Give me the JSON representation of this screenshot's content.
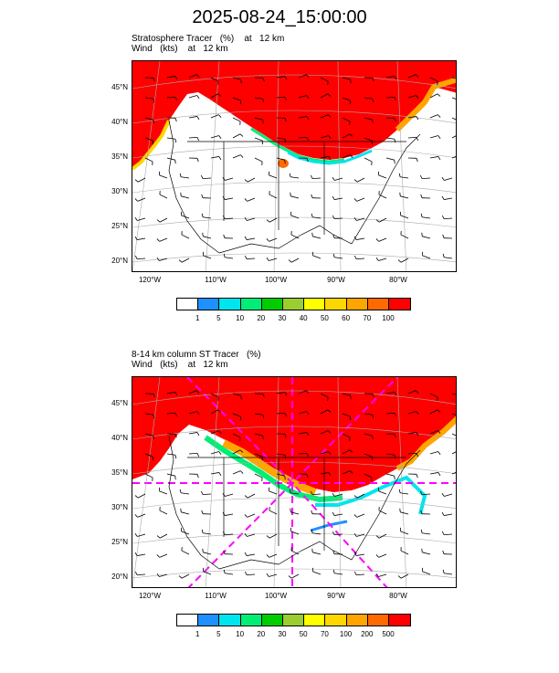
{
  "title": "2025-08-24_15:00:00",
  "panels": [
    {
      "subtitle1": "Stratosphere Tracer   (%)    at   12 km",
      "subtitle2": "Wind   (kts)    at   12 km",
      "colorbar_labels": [
        "1",
        "5",
        "10",
        "20",
        "30",
        "40",
        "50",
        "60",
        "70",
        "100"
      ]
    },
    {
      "subtitle1": "8-14 km column ST Tracer   (%)",
      "subtitle2": "Wind   (kts)    at   12 km",
      "colorbar_labels": [
        "1",
        "5",
        "10",
        "20",
        "30",
        "50",
        "70",
        "100",
        "200",
        "500"
      ]
    }
  ],
  "lat_labels": [
    "45°N",
    "40°N",
    "35°N",
    "30°N",
    "25°N",
    "20°N"
  ],
  "lon_labels": [
    "120°W",
    "110°W",
    "100°W",
    "90°W",
    "80°W"
  ],
  "colorbar_colors": [
    "#ffffff",
    "#1e90ff",
    "#00e5ee",
    "#00ee76",
    "#00cd00",
    "#9acd32",
    "#ffff00",
    "#ffd700",
    "#ffa500",
    "#ff6a00",
    "#ff0000"
  ],
  "map": {
    "projection": "Lambert conformal",
    "field_color": "#ff0000",
    "contour_overlay_color": "#ff00ff",
    "grid": true
  }
}
